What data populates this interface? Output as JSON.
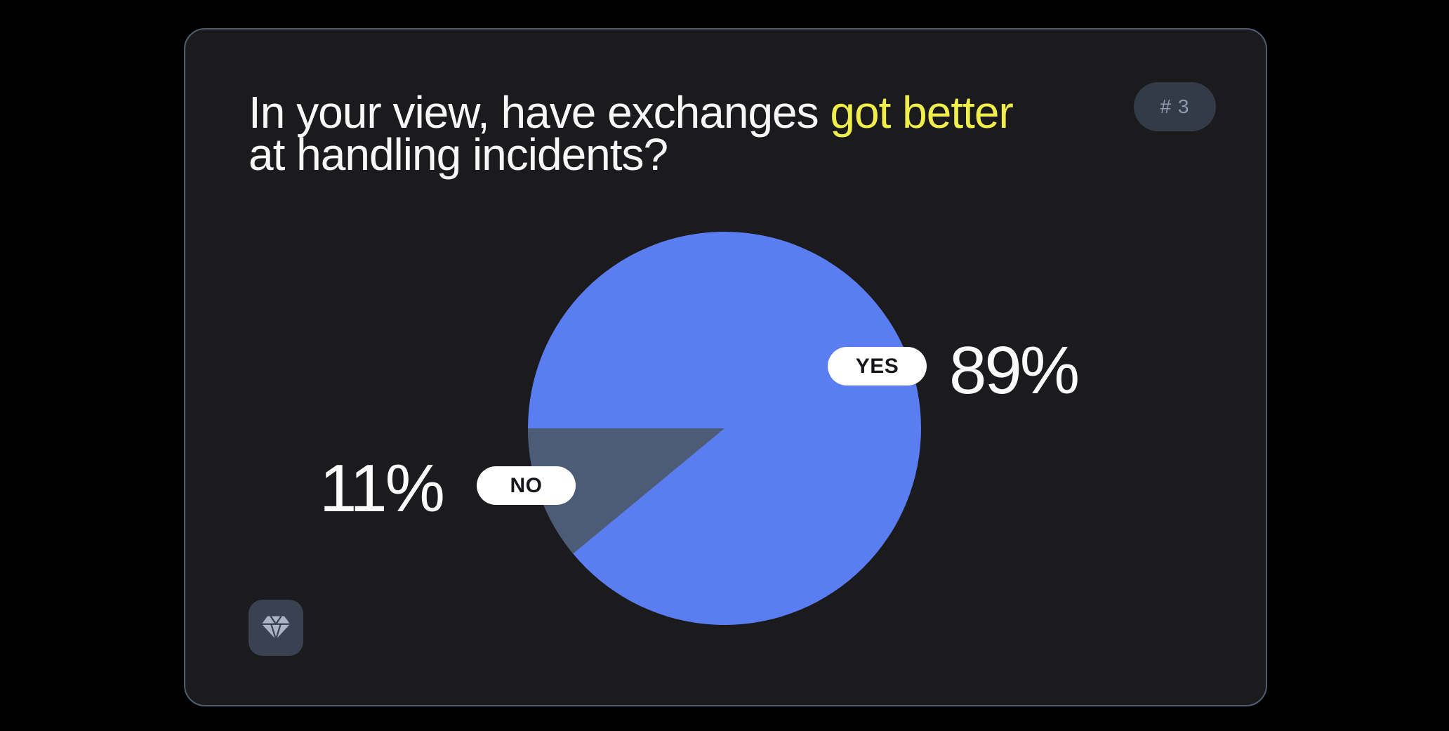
{
  "page": {
    "background_color": "#000000"
  },
  "card": {
    "background_color": "#1b1a1c",
    "border_color": "#4f5d73",
    "slide_number_badge": "# 3",
    "question": {
      "text_before_highlight": "In your view, have exchanges ",
      "highlight": "got better",
      "highlight_color": "#f0ee4b",
      "text_line2": "at handling incidents?"
    },
    "footer_icon": "gem-icon"
  },
  "chart_data": {
    "type": "pie",
    "title": "In your view, have exchanges got better at handling incidents?",
    "slices": [
      {
        "label": "YES",
        "value": 89,
        "display": "89%",
        "color": "#5b7df2"
      },
      {
        "label": "NO",
        "value": 11,
        "display": "11%",
        "color": "#4d5c76"
      }
    ],
    "start_angle_deg": 180,
    "legend_position": "callout-pills",
    "value_label_color": "#fbfbfc",
    "pill_background": "#ffffff",
    "pill_text_color": "#17161a"
  },
  "colors": {
    "accent_yellow": "#f0ee4b",
    "pie_yes_blue": "#5b7df2",
    "pie_no_slate": "#4d5c76",
    "badge_background": "#343b48",
    "badge_text": "#8e9aae",
    "tile_background": "#3a4150",
    "gem_icon": "#a9b5c7"
  }
}
